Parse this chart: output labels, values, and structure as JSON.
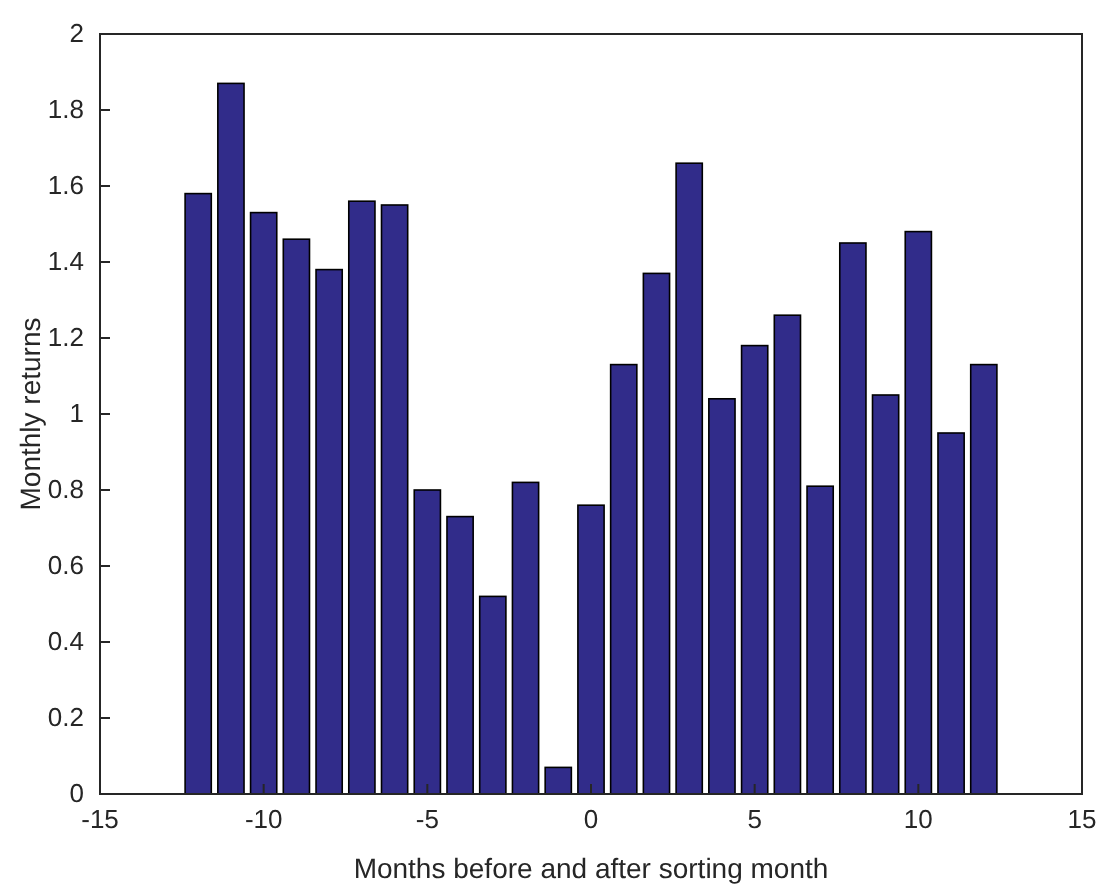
{
  "chart_data": {
    "type": "bar",
    "xlabel": "Months before and after sorting month",
    "ylabel": "Monthly returns",
    "x": [
      -12,
      -11,
      -10,
      -9,
      -8,
      -7,
      -6,
      -5,
      -4,
      -3,
      -2,
      -1,
      0,
      1,
      2,
      3,
      4,
      5,
      6,
      7,
      8,
      9,
      10,
      11,
      12
    ],
    "values": [
      1.58,
      1.87,
      1.53,
      1.46,
      1.38,
      1.56,
      1.55,
      0.8,
      0.73,
      0.52,
      0.82,
      0.07,
      0.76,
      1.13,
      1.37,
      1.66,
      1.04,
      1.18,
      1.26,
      0.81,
      1.45,
      1.05,
      1.48,
      0.95,
      1.13
    ],
    "color": "#312c8a",
    "xlim": [
      -15,
      15
    ],
    "xticks": [
      -15,
      -10,
      -5,
      0,
      5,
      10,
      15
    ],
    "ylim": [
      0,
      2
    ],
    "yticks": [
      0,
      0.2,
      0.4,
      0.6,
      0.8,
      1,
      1.2,
      1.4,
      1.6,
      1.8,
      2
    ],
    "grid": false
  }
}
